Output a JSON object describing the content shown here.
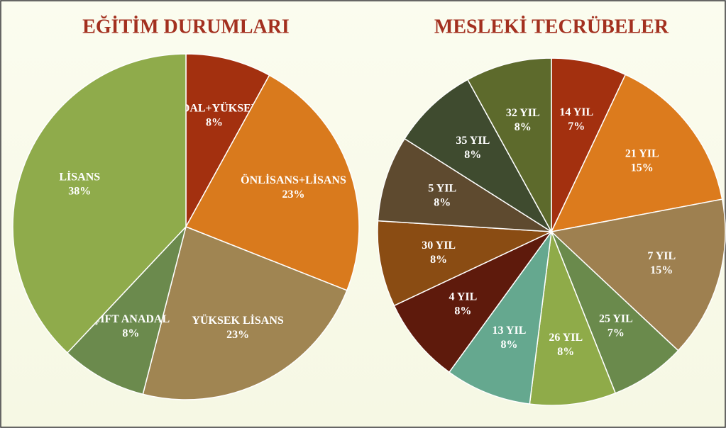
{
  "chart_data": [
    {
      "type": "pie",
      "title": "EĞİTİM DURUMLARI",
      "categories": [
        "ÇİFT ANADAL+YÜKSEKLİSANS",
        "ÖNLİSANS+LİSANS",
        "YÜKSEK LİSANS",
        "ÇİFT ANADAL",
        "LİSANS"
      ],
      "values": [
        8,
        23,
        23,
        8,
        38
      ],
      "value_labels": [
        "8%",
        "23%",
        "23%",
        "8%",
        "38%"
      ],
      "colors": [
        "#a3300f",
        "#d97a1d",
        "#a08552",
        "#6b8a4d",
        "#8fab4b"
      ]
    },
    {
      "type": "pie",
      "title": "MESLEKİ TECRÜBELER",
      "categories": [
        "14 YIL",
        "21 YIL",
        "7 YIL",
        "25 YIL",
        "26 YIL",
        "13 YIL",
        "4 YIL",
        "30 YIL",
        "5 YIL",
        "35 YIL",
        "32 YIL"
      ],
      "values": [
        7,
        15,
        15,
        7,
        8,
        8,
        8,
        8,
        8,
        8,
        8
      ],
      "value_labels": [
        "7%",
        "15%",
        "15%",
        "7%",
        "8%",
        "8%",
        "8%",
        "8%",
        "8%",
        "8%",
        "8%"
      ],
      "colors": [
        "#a3300f",
        "#dc7b1d",
        "#9e8050",
        "#6a8a4c",
        "#8fab49",
        "#65a88f",
        "#5e1a0c",
        "#8a4c13",
        "#5e4a2f",
        "#3f4b2f",
        "#5d6a2c"
      ]
    }
  ]
}
